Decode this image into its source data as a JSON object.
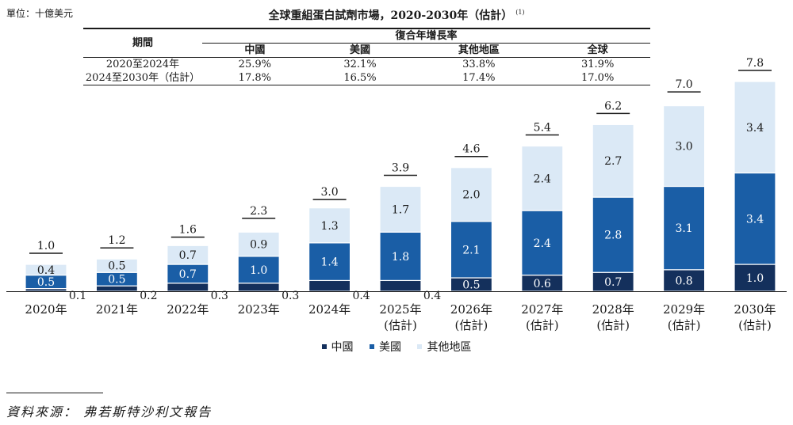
{
  "unit_label": "單位：十億美元",
  "title": "全球重組蛋白試劑市場，2020-2030年（估計）",
  "title_note": "(1)",
  "cagr_table": {
    "period_header": "期間",
    "group_header": "復合年增長率",
    "columns": [
      "中國",
      "美國",
      "其他地區",
      "全球"
    ],
    "rows": [
      {
        "period": "2020至2024年",
        "values": [
          "25.9%",
          "32.1%",
          "33.8%",
          "31.9%"
        ]
      },
      {
        "period": "2024至2030年（估計）",
        "values": [
          "17.8%",
          "16.5%",
          "17.4%",
          "17.0%"
        ]
      }
    ]
  },
  "chart_data": {
    "type": "bar",
    "stacked": true,
    "categories": [
      [
        "2020年"
      ],
      [
        "2021年"
      ],
      [
        "2022年"
      ],
      [
        "2023年"
      ],
      [
        "2024年"
      ],
      [
        "2025年",
        "(估計)"
      ],
      [
        "2026年",
        "(估計)"
      ],
      [
        "2027年",
        "(估計)"
      ],
      [
        "2028年",
        "(估計)"
      ],
      [
        "2029年",
        "(估計)"
      ],
      [
        "2030年",
        "(估計)"
      ]
    ],
    "series": [
      {
        "name": "中國",
        "color": "#14305c",
        "values": [
          0.1,
          0.2,
          0.3,
          0.3,
          0.4,
          0.4,
          0.5,
          0.6,
          0.7,
          0.8,
          1.0
        ]
      },
      {
        "name": "美國",
        "color": "#1a5ea6",
        "values": [
          0.5,
          0.5,
          0.7,
          1.0,
          1.4,
          1.8,
          2.1,
          2.4,
          2.8,
          3.1,
          3.4
        ]
      },
      {
        "name": "其他地區",
        "color": "#dbe9f6",
        "values": [
          0.4,
          0.5,
          0.7,
          0.9,
          1.3,
          1.7,
          2.0,
          2.4,
          2.7,
          3.0,
          3.4
        ]
      }
    ],
    "totals": [
      1.0,
      1.2,
      1.6,
      2.3,
      3.0,
      3.9,
      4.6,
      5.4,
      6.2,
      7.0,
      7.8
    ],
    "ylim": [
      0,
      7.8
    ],
    "grid": false,
    "legend": "bottom-center",
    "xlabel": "",
    "ylabel": ""
  },
  "source": "資料來源： 弗若斯特沙利文報告"
}
